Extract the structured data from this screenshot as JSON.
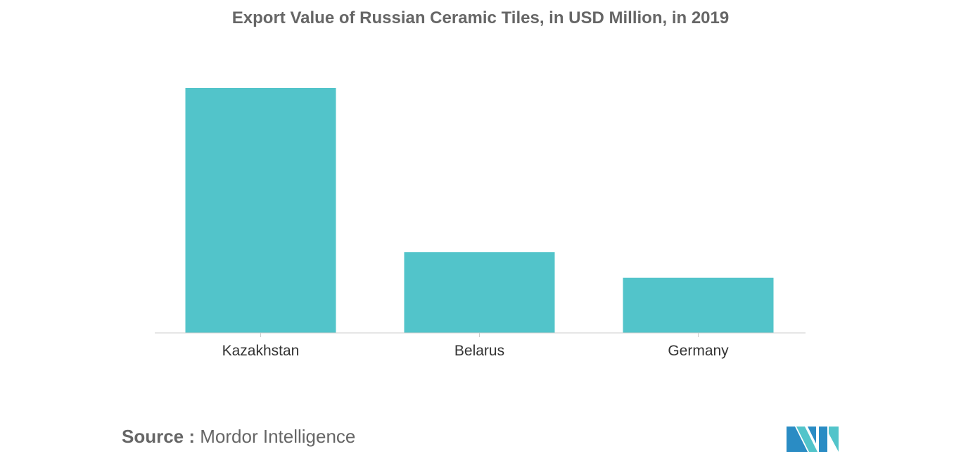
{
  "chart_data": {
    "type": "bar",
    "title": "Export Value of Russian Ceramic Tiles, in USD Million, in 2019",
    "categories": [
      "Kazakhstan",
      "Belarus",
      "Germany"
    ],
    "values": [
      100,
      33,
      22.5
    ],
    "ylim": [
      0,
      100
    ],
    "xlabel": "",
    "ylabel": "",
    "grid": false,
    "legend": "none",
    "bar_color": "#52C4CA",
    "axis_color": "#cccccc"
  },
  "footer": {
    "source_label": "Source :",
    "source_text": "Mordor Intelligence"
  },
  "logo": {
    "icon": "mordor-intelligence-logo",
    "color_dark": "#2A8CC4",
    "color_light": "#52C4CA"
  }
}
